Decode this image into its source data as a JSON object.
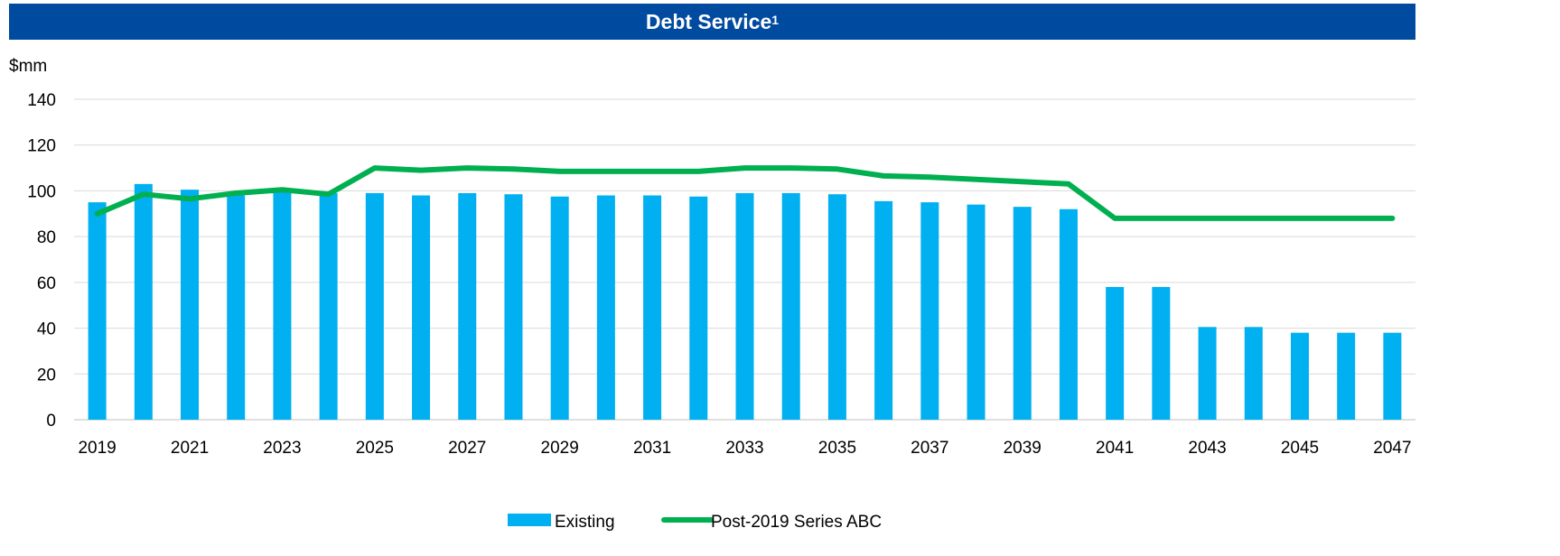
{
  "title": "Debt Service",
  "title_sup": "1",
  "chart_data": {
    "type": "bar",
    "unit_label": "$mm",
    "ylim": [
      0,
      140
    ],
    "y_ticks": [
      "0",
      "20",
      "40",
      "60",
      "80",
      "100",
      "120",
      "140"
    ],
    "categories": [
      2019,
      2020,
      2021,
      2022,
      2023,
      2024,
      2025,
      2026,
      2027,
      2028,
      2029,
      2030,
      2031,
      2032,
      2033,
      2034,
      2035,
      2036,
      2037,
      2038,
      2039,
      2040,
      2041,
      2042,
      2043,
      2044,
      2045,
      2046,
      2047
    ],
    "x_tick_labels": [
      "2019",
      "2021",
      "2023",
      "2025",
      "2027",
      "2029",
      "2031",
      "2033",
      "2035",
      "2037",
      "2039",
      "2041",
      "2043",
      "2045",
      "2047"
    ],
    "grid": true,
    "legend_position": "bottom",
    "series": [
      {
        "name": "Existing",
        "kind": "bar",
        "color": "#00b0f0",
        "values": [
          95,
          103,
          100.5,
          98,
          100,
          99,
          99,
          98,
          99,
          98.5,
          97.5,
          98,
          98,
          97.5,
          99,
          99,
          98.5,
          95.5,
          95,
          94,
          93,
          92,
          58,
          58,
          40.5,
          40.5,
          38,
          38,
          38
        ]
      },
      {
        "name": "Post-2019 Series ABC",
        "kind": "line",
        "color": "#00b050",
        "values": [
          90,
          98.5,
          96.5,
          99,
          100.5,
          98.5,
          110,
          109,
          110,
          109.5,
          108.5,
          108.5,
          108.5,
          108.5,
          110,
          110,
          109.5,
          106.5,
          106,
          105,
          104,
          103,
          88,
          88,
          88,
          88,
          88,
          88,
          88
        ]
      }
    ]
  }
}
